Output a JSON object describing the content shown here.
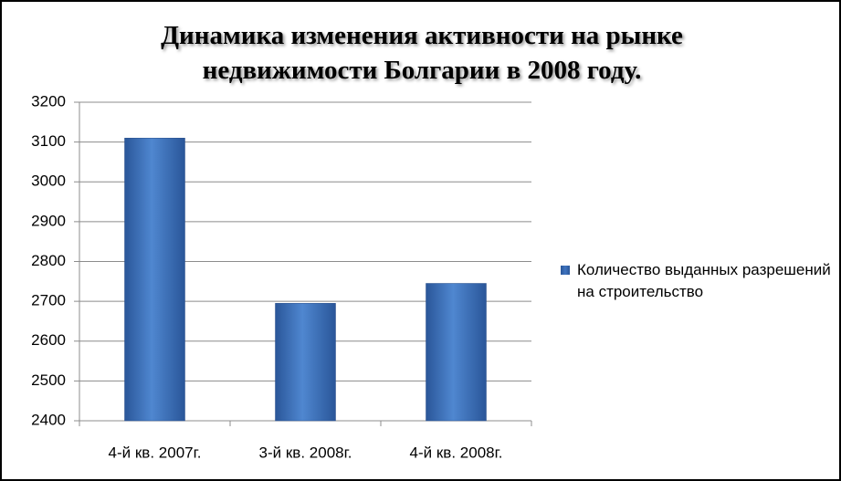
{
  "chart_data": {
    "type": "bar",
    "title": "Динамика изменения активности на рынке недвижимости Болгарии в 2008 году.",
    "categories": [
      "4-й кв. 2007г.",
      "3-й кв. 2008г.",
      "4-й кв. 2008г."
    ],
    "series": [
      {
        "name": "Количество выданных разрешений на строительство",
        "color": "#3f74c0",
        "values": [
          3110,
          2695,
          2745
        ]
      }
    ],
    "ylim": [
      2400,
      3200
    ],
    "yticks": [
      2400,
      2500,
      2600,
      2700,
      2800,
      2900,
      3000,
      3100,
      3200
    ],
    "grid": true,
    "legend": "right"
  }
}
